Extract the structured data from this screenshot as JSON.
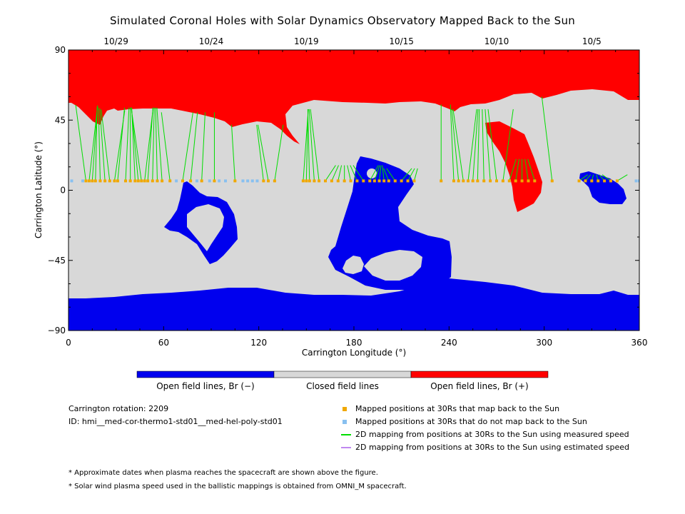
{
  "title": "Simulated Coronal Holes with Solar Dynamics Observatory Mapped Back to the Sun",
  "colors": {
    "open_negative": "#0000ee",
    "closed": "#d8d8d8",
    "open_positive": "#ff0000",
    "mapped_back": "#f0a800",
    "not_mapped": "#88c0f0",
    "measured_speed": "#00dd00",
    "estimated_speed": "#c088f0"
  },
  "chart_data": {
    "type": "map",
    "xlabel": "Carrington Longitude (°)",
    "ylabel": "Carrington Latitude (°)",
    "xlim": [
      0,
      360
    ],
    "ylim": [
      -90,
      90
    ],
    "x_ticks": [
      "0",
      "60",
      "120",
      "180",
      "240",
      "300",
      "360"
    ],
    "x_tick_values": [
      0,
      60,
      120,
      180,
      240,
      300,
      360
    ],
    "y_ticks": [
      "90",
      "45",
      "0",
      "−45",
      "−90"
    ],
    "y_tick_values": [
      90,
      45,
      0,
      -45,
      -90
    ],
    "top_date_labels": [
      {
        "label": "10/29",
        "lon": 30
      },
      {
        "label": "10/24",
        "lon": 90
      },
      {
        "label": "10/19",
        "lon": 150
      },
      {
        "label": "10/15",
        "lon": 210
      },
      {
        "label": "10/10",
        "lon": 270
      },
      {
        "label": "10/5",
        "lon": 330
      }
    ],
    "mapped_positions_lon": [
      11,
      13,
      15,
      17,
      20,
      23,
      26,
      29,
      31,
      36,
      39,
      42,
      44,
      46,
      48,
      50,
      53,
      56,
      59,
      64,
      72,
      77,
      84,
      92,
      105,
      123,
      126,
      130,
      148,
      150,
      152,
      155,
      158,
      162,
      166,
      170,
      174,
      178,
      182,
      186,
      190,
      193,
      196,
      199,
      202,
      206,
      210,
      214,
      218,
      235,
      243,
      246,
      249,
      252,
      255,
      258,
      262,
      266,
      270,
      274,
      278,
      282,
      286,
      290,
      294,
      305,
      322,
      326,
      330,
      334,
      338,
      342,
      346
    ],
    "unmapped_positions_lon": [
      2,
      9,
      68,
      81,
      89,
      95,
      99,
      110,
      113,
      116,
      119,
      358,
      360
    ],
    "open_negative_regions": [
      {
        "name": "south-polar",
        "lon": [
          0,
          360
        ]
      },
      {
        "name": "equatorial-1",
        "lon_range": [
          60,
          115
        ],
        "lat_range": [
          -45,
          10
        ]
      },
      {
        "name": "equatorial-2",
        "lon_range": [
          163,
          243
        ],
        "lat_range": [
          -58,
          22
        ]
      },
      {
        "name": "equatorial-3",
        "lon_range": [
          322,
          352
        ],
        "lat_range": [
          -10,
          12
        ]
      }
    ],
    "open_positive_regions": [
      {
        "name": "north-polar",
        "lon": [
          0,
          360
        ]
      },
      {
        "name": "extension",
        "lon_range": [
          263,
          302
        ],
        "lat_range": [
          -14,
          44
        ]
      }
    ]
  },
  "colorbar": {
    "labels": [
      "Open field lines, Br (−)",
      "Closed field lines",
      "Open field lines, Br (+)"
    ]
  },
  "info": {
    "rotation": "Carrington rotation: 2209",
    "id": "ID: hmi__med-cor-thermo1-std01__med-hel-poly-std01"
  },
  "legend": [
    {
      "label": "Mapped positions at 30Rs that map back to the Sun",
      "kind": "square",
      "color": "#f0a800"
    },
    {
      "label": "Mapped positions at 30Rs that do not map back to the Sun",
      "kind": "square",
      "color": "#88c0f0"
    },
    {
      "label": "2D mapping from positions at 30Rs to the Sun using measured speed",
      "kind": "line",
      "color": "#00dd00"
    },
    {
      "label": "2D mapping from positions at 30Rs to the Sun using estimated speed",
      "kind": "line",
      "color": "#c088f0"
    }
  ],
  "notes": [
    "* Approximate dates when plasma reaches the spacecraft are shown above the figure.",
    "* Solar wind plasma speed used in the ballistic mappings is obtained from OMNI_M spacecraft."
  ]
}
